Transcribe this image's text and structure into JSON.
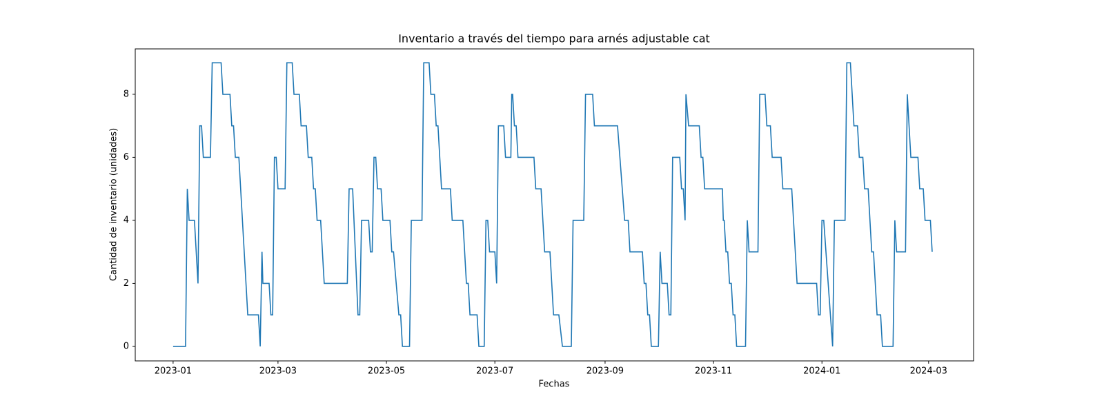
{
  "chart_data": {
    "type": "line",
    "title": "Inventario a través del tiempo para arnés adjustable cat",
    "x_label": "Fechas",
    "y_label": "Cantidad de inventario (unidades)",
    "x": [
      0,
      7,
      8,
      9,
      12,
      14,
      15,
      16,
      17,
      21,
      22,
      27,
      28,
      32,
      33,
      34,
      35,
      37,
      42,
      48,
      49,
      50,
      50.5,
      54,
      55,
      56,
      57,
      58,
      59,
      63,
      64,
      67,
      68,
      71,
      72,
      75,
      76,
      78,
      79,
      80,
      81,
      83,
      85,
      98,
      99,
      101,
      104,
      105,
      106,
      110,
      111,
      112,
      113,
      114,
      115,
      117,
      118,
      122,
      123,
      124,
      127,
      128,
      129,
      133,
      134,
      140,
      141,
      144,
      145,
      147,
      148,
      149,
      151,
      156,
      157,
      163,
      165,
      166,
      167,
      171,
      172,
      175,
      176,
      177,
      178,
      181,
      182,
      183,
      186,
      187,
      190,
      190.5,
      191,
      192,
      193,
      194,
      203,
      204,
      207,
      209,
      212,
      214,
      217,
      219,
      224,
      225,
      231,
      232,
      236,
      237,
      250,
      254,
      256,
      257,
      264,
      265,
      266,
      267,
      268,
      269,
      273,
      274,
      275,
      278,
      279,
      280,
      281,
      285,
      286,
      287,
      288,
      288.5,
      290,
      296,
      297,
      298,
      299,
      309,
      309.5,
      310,
      311,
      312,
      313,
      314,
      315,
      316,
      317,
      322,
      323,
      324,
      329,
      330,
      333,
      334,
      336,
      337,
      342,
      343,
      348,
      351,
      362,
      363,
      364,
      365,
      366,
      371,
      372,
      378,
      379,
      381,
      383,
      385,
      386,
      388,
      389,
      391,
      393,
      394,
      396,
      398,
      399,
      405,
      406,
      407,
      412,
      413,
      415,
      419,
      420,
      422,
      423,
      426,
      427
    ],
    "series": [
      {
        "color": "#1f77b4",
        "values": [
          0,
          0,
          5,
          4,
          4,
          2,
          7,
          7,
          6,
          6,
          9,
          9,
          8,
          8,
          7,
          7,
          6,
          6,
          1,
          1,
          0,
          3,
          2,
          2,
          1,
          1,
          6,
          6,
          5,
          5,
          9,
          9,
          8,
          8,
          7,
          7,
          6,
          6,
          5,
          5,
          4,
          4,
          2,
          2,
          5,
          5,
          1,
          1,
          4,
          4,
          3,
          3,
          6,
          6,
          5,
          5,
          4,
          4,
          3,
          3,
          1,
          1,
          0,
          0,
          4,
          4,
          9,
          9,
          8,
          8,
          7,
          7,
          5,
          5,
          4,
          4,
          2,
          2,
          1,
          1,
          0,
          0,
          4,
          4,
          3,
          3,
          2,
          7,
          7,
          6,
          6,
          8,
          8,
          7,
          7,
          6,
          6,
          5,
          5,
          3,
          3,
          1,
          1,
          0,
          0,
          4,
          4,
          8,
          8,
          7,
          7,
          4,
          4,
          3,
          3,
          2,
          2,
          1,
          1,
          0,
          0,
          3,
          2,
          2,
          1,
          1,
          6,
          6,
          5,
          5,
          4,
          8,
          7,
          7,
          6,
          6,
          5,
          5,
          4,
          4,
          3,
          3,
          2,
          2,
          1,
          1,
          0,
          0,
          4,
          3,
          3,
          8,
          8,
          7,
          7,
          6,
          6,
          5,
          5,
          2,
          2,
          1,
          1,
          4,
          4,
          0,
          4,
          4,
          9,
          9,
          7,
          7,
          6,
          6,
          5,
          5,
          3,
          3,
          1,
          1,
          0,
          0,
          4,
          3,
          3,
          8,
          6,
          6,
          5,
          5,
          4,
          4,
          3
        ]
      }
    ],
    "xlim": [
      -21.3,
      450.3
    ],
    "xticks": [
      {
        "value": 0,
        "label": "2023-01"
      },
      {
        "value": 59,
        "label": "2023-03"
      },
      {
        "value": 120,
        "label": "2023-05"
      },
      {
        "value": 181,
        "label": "2023-07"
      },
      {
        "value": 243,
        "label": "2023-09"
      },
      {
        "value": 304,
        "label": "2023-11"
      },
      {
        "value": 365,
        "label": "2024-01"
      },
      {
        "value": 425,
        "label": "2024-03"
      }
    ],
    "ylim": [
      -0.46,
      9.44
    ],
    "yticks": [
      0,
      2,
      4,
      6,
      8
    ]
  }
}
